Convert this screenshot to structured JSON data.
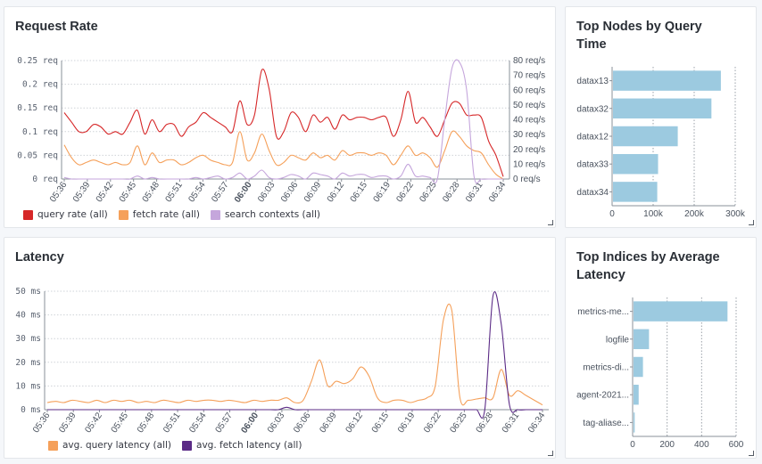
{
  "colors": {
    "query": "#d62728",
    "fetch": "#f5a05a",
    "search": "#c5a6dc",
    "fetch_latency": "#5b2b86",
    "bar": "#9ccae0",
    "grid": "#cfd3d8",
    "axis": "#5a6270"
  },
  "panels": {
    "request_rate": {
      "title": "Request Rate",
      "legend": [
        "query rate (all)",
        "fetch rate (all)",
        "search contexts (all)"
      ]
    },
    "top_nodes": {
      "title": "Top Nodes by Query Time"
    },
    "latency": {
      "title": "Latency",
      "legend": [
        "avg. query latency (all)",
        "avg. fetch latency (all)"
      ]
    },
    "top_indices": {
      "title": "Top Indices by Average Latency"
    }
  },
  "chart_data": [
    {
      "type": "line",
      "name": "request_rate",
      "x_tick_labels": [
        "05:36",
        "05:39",
        "05:42",
        "05:45",
        "05:48",
        "05:51",
        "05:54",
        "05:57",
        "06:00",
        "06:03",
        "06:06",
        "06:09",
        "06:12",
        "06:15",
        "06:19",
        "06:22",
        "06:25",
        "06:28",
        "06:31",
        "06:34"
      ],
      "bold_tick": "06:00",
      "y_left_ticks": [
        "0 req",
        "0.05 req",
        "0.1 req",
        "0.15 req",
        "0.2 req",
        "0.25 req"
      ],
      "y_left_lim": [
        0,
        0.25
      ],
      "y_right_ticks": [
        "0 req/s",
        "10 req/s",
        "20 req/s",
        "30 req/s",
        "40 req/s",
        "50 req/s",
        "60 req/s",
        "70 req/s",
        "80 req/s"
      ],
      "y_right_lim": [
        0,
        80
      ],
      "x_range_minutes": [
        0,
        60
      ],
      "series": [
        {
          "name": "query rate (all)",
          "axis": "left",
          "x": [
            0,
            1,
            2,
            3,
            4,
            5,
            6,
            7,
            8,
            9,
            10,
            11,
            12,
            13,
            14,
            15,
            16,
            17,
            18,
            19,
            20,
            21,
            22,
            23,
            24,
            25,
            26,
            27,
            28,
            29,
            30,
            31,
            32,
            33,
            34,
            35,
            36,
            37,
            38,
            39,
            40,
            41,
            42,
            43,
            44,
            45,
            46,
            47,
            48,
            49,
            50,
            51,
            52,
            53,
            54,
            55,
            56,
            57,
            58,
            59,
            60
          ],
          "values": [
            0.14,
            0.12,
            0.1,
            0.1,
            0.115,
            0.11,
            0.095,
            0.1,
            0.095,
            0.12,
            0.145,
            0.095,
            0.125,
            0.1,
            0.115,
            0.115,
            0.09,
            0.11,
            0.12,
            0.14,
            0.13,
            0.12,
            0.11,
            0.1,
            0.165,
            0.115,
            0.135,
            0.23,
            0.19,
            0.09,
            0.1,
            0.14,
            0.13,
            0.1,
            0.135,
            0.12,
            0.13,
            0.105,
            0.135,
            0.125,
            0.13,
            0.13,
            0.125,
            0.13,
            0.13,
            0.09,
            0.125,
            0.185,
            0.12,
            0.13,
            0.11,
            0.09,
            0.125,
            0.16,
            0.16,
            0.135,
            0.135,
            0.13,
            0.08,
            0.05,
            0.005
          ]
        },
        {
          "name": "fetch rate (all)",
          "axis": "left",
          "x": [
            0,
            1,
            2,
            3,
            4,
            5,
            6,
            7,
            8,
            9,
            10,
            11,
            12,
            13,
            14,
            15,
            16,
            17,
            18,
            19,
            20,
            21,
            22,
            23,
            24,
            25,
            26,
            27,
            28,
            29,
            30,
            31,
            32,
            33,
            34,
            35,
            36,
            37,
            38,
            39,
            40,
            41,
            42,
            43,
            44,
            45,
            46,
            47,
            48,
            49,
            50,
            51,
            52,
            53,
            54,
            55,
            56,
            57,
            58,
            59,
            60
          ],
          "values": [
            0.072,
            0.045,
            0.03,
            0.035,
            0.04,
            0.035,
            0.03,
            0.035,
            0.03,
            0.035,
            0.07,
            0.03,
            0.055,
            0.035,
            0.04,
            0.04,
            0.03,
            0.035,
            0.045,
            0.05,
            0.04,
            0.035,
            0.03,
            0.035,
            0.1,
            0.04,
            0.055,
            0.095,
            0.06,
            0.03,
            0.035,
            0.05,
            0.045,
            0.04,
            0.055,
            0.045,
            0.05,
            0.04,
            0.06,
            0.05,
            0.055,
            0.055,
            0.05,
            0.055,
            0.05,
            0.03,
            0.05,
            0.07,
            0.05,
            0.055,
            0.045,
            0.025,
            0.06,
            0.1,
            0.09,
            0.07,
            0.06,
            0.055,
            0.03,
            0.01,
            0.0
          ]
        },
        {
          "name": "search contexts (all)",
          "axis": "right",
          "x": [
            0,
            1,
            2,
            3,
            4,
            5,
            6,
            7,
            8,
            9,
            10,
            11,
            12,
            13,
            14,
            15,
            16,
            17,
            18,
            19,
            20,
            21,
            22,
            23,
            24,
            25,
            26,
            27,
            28,
            29,
            30,
            31,
            32,
            33,
            34,
            35,
            36,
            37,
            38,
            39,
            40,
            41,
            42,
            43,
            44,
            45,
            46,
            47,
            48,
            49,
            50,
            51,
            52,
            53,
            54,
            55,
            56,
            57,
            58,
            59,
            60
          ],
          "values": [
            1,
            0,
            0,
            0,
            0,
            0,
            0,
            0,
            0,
            0,
            2,
            0,
            1,
            0,
            0,
            0,
            0,
            0,
            1,
            0,
            1,
            2,
            0,
            1,
            4,
            0,
            2,
            6,
            1,
            0,
            1,
            3,
            2,
            0,
            4,
            3,
            2,
            0,
            4,
            2,
            3,
            3,
            1,
            2,
            2,
            0,
            2,
            10,
            2,
            2,
            1,
            0,
            40,
            75,
            79,
            60,
            2,
            0,
            0,
            0,
            0
          ]
        }
      ]
    },
    {
      "type": "bar",
      "name": "top_nodes",
      "orientation": "horizontal",
      "categories": [
        "datax13",
        "datax32",
        "datax12",
        "datax33",
        "datax34"
      ],
      "values": [
        265000,
        242000,
        160000,
        112000,
        110000
      ],
      "x_ticks": [
        "0",
        "100k",
        "200k",
        "300k"
      ],
      "xlim": [
        0,
        300000
      ]
    },
    {
      "type": "line",
      "name": "latency",
      "x_tick_labels": [
        "05:36",
        "05:39",
        "05:42",
        "05:45",
        "05:48",
        "05:51",
        "05:54",
        "05:57",
        "06:00",
        "06:03",
        "06:06",
        "06:09",
        "06:12",
        "06:15",
        "06:19",
        "06:22",
        "06:25",
        "06:28",
        "06:31",
        "06:34"
      ],
      "bold_tick": "06:00",
      "y_ticks": [
        "0 ms",
        "10 ms",
        "20 ms",
        "30 ms",
        "40 ms",
        "50 ms"
      ],
      "ylim": [
        0,
        50
      ],
      "x_range_minutes": [
        0,
        60
      ],
      "series": [
        {
          "name": "avg. query latency (all)",
          "x": [
            0,
            1,
            2,
            3,
            4,
            5,
            6,
            7,
            8,
            9,
            10,
            11,
            12,
            13,
            14,
            15,
            16,
            17,
            18,
            19,
            20,
            21,
            22,
            23,
            24,
            25,
            26,
            27,
            28,
            29,
            30,
            31,
            32,
            33,
            34,
            35,
            36,
            37,
            38,
            39,
            40,
            41,
            42,
            43,
            44,
            45,
            46,
            47,
            48,
            49,
            50,
            51,
            52,
            53,
            54,
            55,
            56,
            57,
            58,
            59,
            60
          ],
          "values": [
            3,
            3.5,
            3,
            4,
            3.5,
            3,
            4,
            3,
            4,
            3.5,
            4,
            3,
            3.5,
            3,
            4,
            3.5,
            3,
            4,
            3.5,
            4,
            4,
            3.5,
            4,
            3.5,
            3,
            4,
            3.5,
            4,
            4,
            5,
            3,
            4,
            12,
            21,
            10,
            12,
            11,
            13,
            18,
            14,
            5,
            3,
            4,
            4,
            3,
            4,
            5,
            10,
            38,
            42,
            5,
            4,
            4.5,
            5,
            5,
            17,
            6,
            8,
            6,
            4,
            2
          ]
        },
        {
          "name": "avg. fetch latency (all)",
          "x": [
            0,
            1,
            2,
            3,
            4,
            5,
            6,
            7,
            8,
            9,
            10,
            11,
            12,
            13,
            14,
            15,
            16,
            17,
            18,
            19,
            20,
            21,
            22,
            23,
            24,
            25,
            26,
            27,
            28,
            29,
            30,
            31,
            32,
            33,
            34,
            35,
            36,
            37,
            38,
            39,
            40,
            41,
            42,
            43,
            44,
            45,
            46,
            47,
            48,
            49,
            50,
            51,
            52,
            53,
            54,
            55,
            56,
            57,
            58,
            59,
            60
          ],
          "values": [
            0,
            0,
            0,
            0,
            0,
            0,
            0,
            0,
            0,
            0,
            0,
            0,
            0,
            0,
            0,
            0,
            0,
            0,
            0,
            0,
            0,
            0,
            0,
            0,
            0,
            0,
            0,
            0,
            0,
            1,
            0,
            0,
            0,
            0,
            0,
            0,
            0,
            0,
            0,
            0,
            0,
            0,
            0,
            0,
            0,
            0,
            0,
            0,
            0,
            0,
            0,
            0,
            0,
            0,
            48,
            36,
            2,
            0,
            0,
            0,
            0
          ]
        }
      ]
    },
    {
      "type": "bar",
      "name": "top_indices",
      "orientation": "horizontal",
      "categories": [
        "metrics-me...",
        "logfile",
        "metrics-di...",
        "agent-2021...",
        "tag-aliase..."
      ],
      "values": [
        550,
        95,
        60,
        35,
        12
      ],
      "x_ticks": [
        "0",
        "200",
        "400",
        "600"
      ],
      "xlim": [
        0,
        600
      ]
    }
  ]
}
